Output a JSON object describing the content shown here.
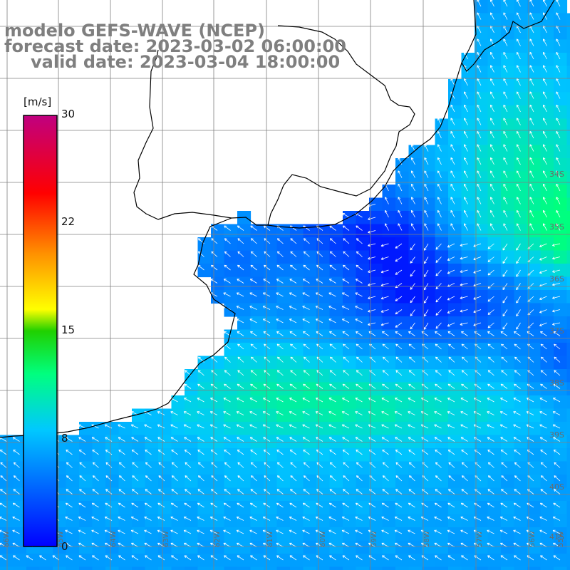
{
  "title": {
    "line1": "modelo GEFS-WAVE (NCEP)",
    "line2": "forecast date: 2023-03-02 06:00:00",
    "line3": "valid date: 2023-03-04 18:00:00"
  },
  "colorbar": {
    "unit": "[m/s]",
    "min": 0,
    "max": 30,
    "ticks": [
      "30",
      "22",
      "15",
      "8",
      "0"
    ],
    "tick_values": [
      30,
      22,
      15,
      8,
      0
    ],
    "stops": [
      "#0000ff",
      "#00c8ff",
      "#00ff7f",
      "#20d000",
      "#ffff00",
      "#ff9000",
      "#ff0000",
      "#c00080"
    ]
  },
  "lat_labels": [
    "34S",
    "35S",
    "36S",
    "37S",
    "38S",
    "39S",
    "40S",
    "41S"
  ],
  "lon_labels": [
    "66W",
    "65W",
    "64W",
    "63W",
    "62W",
    "61W",
    "60W",
    "59W",
    "58W",
    "57W",
    "56W",
    "55W"
  ],
  "colors": {
    "land": "#ffffff",
    "coast": "#000000",
    "grid": "#808080",
    "arrows": "#ffffff",
    "title": "#7f7f7f"
  }
}
